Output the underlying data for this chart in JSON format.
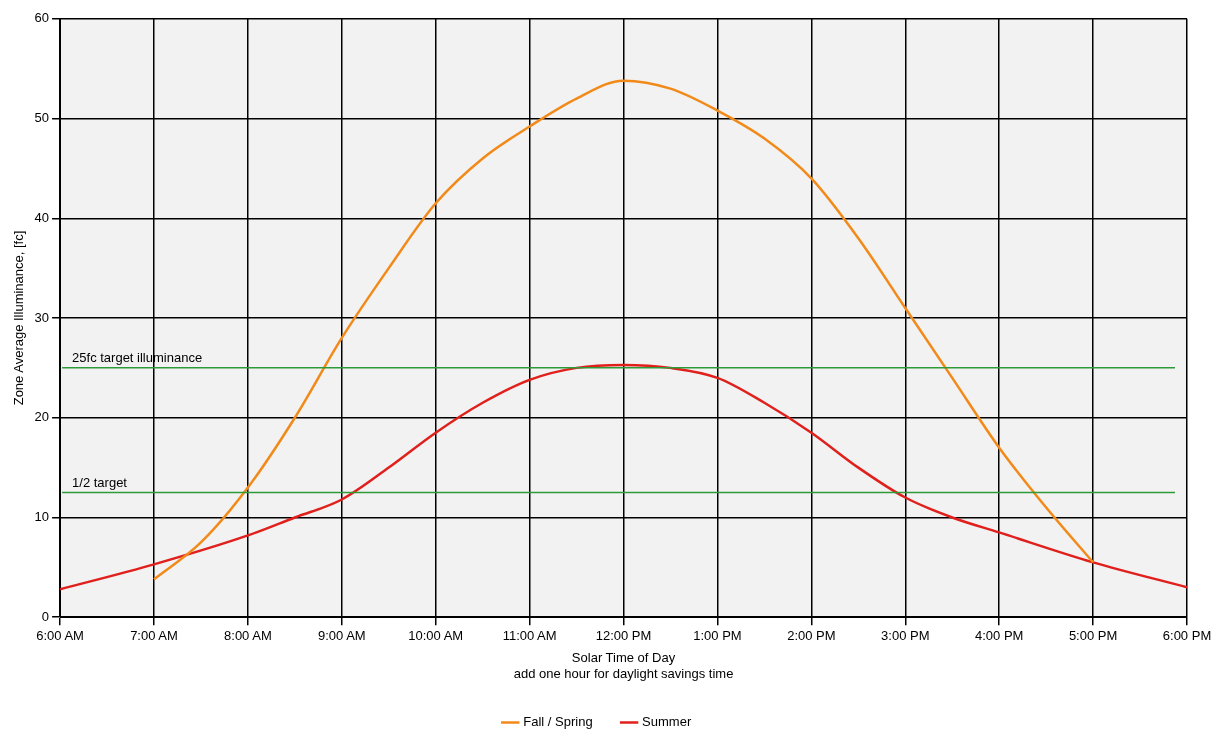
{
  "chart_data": {
    "type": "line",
    "xlabel": "Solar Time of Day",
    "ylabel": "Zone Average Illuminance, [fc]",
    "annotations": [
      "add one hour for daylight savings time"
    ],
    "xlim": [
      6,
      18
    ],
    "xticks": [
      {
        "value": 6,
        "label": "6:00 AM"
      },
      {
        "value": 7,
        "label": "7:00 AM"
      },
      {
        "value": 8,
        "label": "8:00 AM"
      },
      {
        "value": 9,
        "label": "9:00 AM"
      },
      {
        "value": 10,
        "label": "10:00 AM"
      },
      {
        "value": 11,
        "label": "11:00 AM"
      },
      {
        "value": 12,
        "label": "12:00 PM"
      },
      {
        "value": 13,
        "label": "1:00 PM"
      },
      {
        "value": 14,
        "label": "2:00 PM"
      },
      {
        "value": 15,
        "label": "3:00 PM"
      },
      {
        "value": 16,
        "label": "4:00 PM"
      },
      {
        "value": 17,
        "label": "5:00 PM"
      },
      {
        "value": 18,
        "label": "6:00 PM"
      }
    ],
    "ylim": [
      0,
      60
    ],
    "yticks": [
      0,
      10,
      20,
      30,
      40,
      50,
      60
    ],
    "grid": true,
    "legend": "bottom",
    "marker": "none",
    "series": [
      {
        "name": "Fall / Spring",
        "color": "#f28a1a",
        "x": [
          7,
          7.5,
          8,
          8.5,
          9,
          9.5,
          10,
          10.5,
          11,
          11.5,
          12,
          12.5,
          13,
          13.5,
          14,
          14.5,
          15,
          15.5,
          16,
          16.5,
          17
        ],
        "values": [
          3.8,
          7.5,
          13,
          20,
          28,
          35,
          41.5,
          46,
          49.2,
          52,
          53.8,
          53,
          50.8,
          48,
          44,
          38,
          31,
          24,
          17,
          11,
          5.5
        ]
      },
      {
        "name": "Summer",
        "color": "#e0201c",
        "x": [
          6,
          7,
          8,
          8.5,
          9,
          9.5,
          10,
          10.5,
          11,
          11.5,
          12,
          12.5,
          13,
          13.5,
          14,
          14.5,
          15,
          15.5,
          16,
          17,
          18
        ],
        "values": [
          2.8,
          5.3,
          8.2,
          10,
          11.8,
          15,
          18.5,
          21.5,
          23.8,
          25,
          25.3,
          25,
          24,
          21.5,
          18.5,
          15,
          12,
          10,
          8.5,
          5.5,
          3
        ]
      }
    ],
    "ref_lines": [
      {
        "axis": "y",
        "value": 25,
        "label": "25fc target illuminance",
        "color": "#2e9a3a"
      },
      {
        "axis": "y",
        "value": 12.5,
        "label": "1/2 target",
        "color": "#2e9a3a"
      }
    ]
  }
}
